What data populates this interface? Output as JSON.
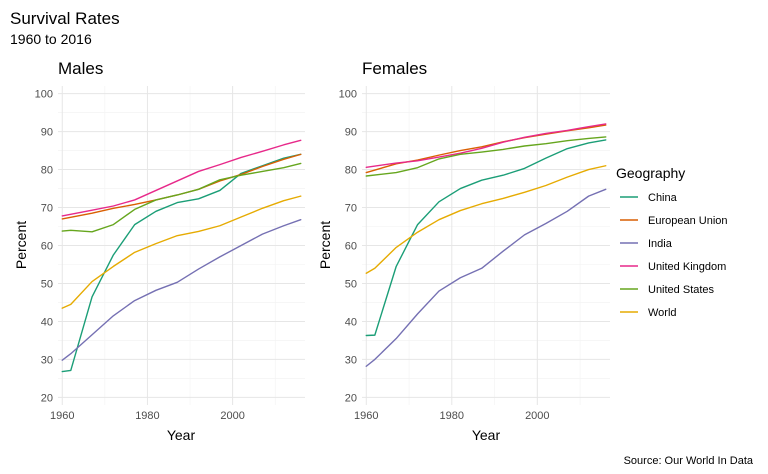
{
  "chart_data": {
    "type": "line",
    "title": "Survival Rates",
    "subtitle": "1960 to 2016",
    "caption": "Source: Our World In Data",
    "xlabel": "Year",
    "ylabel": "Percent",
    "xlim": [
      1959,
      2017
    ],
    "ylim": [
      18,
      102
    ],
    "x_ticks": [
      1960,
      1980,
      2000
    ],
    "y_ticks": [
      20,
      30,
      40,
      50,
      60,
      70,
      80,
      90,
      100
    ],
    "grid": true,
    "legend": {
      "title": "Geography",
      "position": "right",
      "items": [
        {
          "name": "China",
          "color": "#1b9e77"
        },
        {
          "name": "European Union",
          "color": "#d95f02"
        },
        {
          "name": "India",
          "color": "#7570b3"
        },
        {
          "name": "United Kingdom",
          "color": "#e7298a"
        },
        {
          "name": "United States",
          "color": "#66a61e"
        },
        {
          "name": "World",
          "color": "#e6ab02"
        }
      ]
    },
    "panels": [
      {
        "title": "Males",
        "series": [
          {
            "name": "China",
            "color": "#1b9e77",
            "points": [
              [
                1960,
                26.8
              ],
              [
                1962,
                27.1
              ],
              [
                1967,
                46.5
              ],
              [
                1972,
                57.5
              ],
              [
                1977,
                65.5
              ],
              [
                1982,
                69.0
              ],
              [
                1987,
                71.3
              ],
              [
                1992,
                72.3
              ],
              [
                1997,
                74.5
              ],
              [
                2002,
                79.0
              ],
              [
                2007,
                81.0
              ],
              [
                2012,
                83.0
              ],
              [
                2016,
                84.0
              ]
            ]
          },
          {
            "name": "European Union",
            "color": "#d95f02",
            "points": [
              [
                1960,
                67.0
              ],
              [
                1967,
                68.5
              ],
              [
                1972,
                69.8
              ],
              [
                1977,
                70.8
              ],
              [
                1982,
                72.0
              ],
              [
                1987,
                73.3
              ],
              [
                1992,
                74.8
              ],
              [
                1997,
                77.0
              ],
              [
                2002,
                78.7
              ],
              [
                2007,
                80.8
              ],
              [
                2012,
                82.7
              ],
              [
                2016,
                84.0
              ]
            ]
          },
          {
            "name": "India",
            "color": "#7570b3",
            "points": [
              [
                1960,
                29.8
              ],
              [
                1962,
                31.5
              ],
              [
                1967,
                36.5
              ],
              [
                1972,
                41.5
              ],
              [
                1977,
                45.5
              ],
              [
                1982,
                48.2
              ],
              [
                1987,
                50.3
              ],
              [
                1992,
                53.8
              ],
              [
                1997,
                57.0
              ],
              [
                2002,
                60.0
              ],
              [
                2007,
                63.0
              ],
              [
                2012,
                65.2
              ],
              [
                2016,
                66.8
              ]
            ]
          },
          {
            "name": "United Kingdom",
            "color": "#e7298a",
            "points": [
              [
                1960,
                67.8
              ],
              [
                1967,
                69.3
              ],
              [
                1972,
                70.4
              ],
              [
                1977,
                72.0
              ],
              [
                1982,
                74.5
              ],
              [
                1987,
                77.0
              ],
              [
                1992,
                79.5
              ],
              [
                1997,
                81.3
              ],
              [
                2002,
                83.2
              ],
              [
                2007,
                84.8
              ],
              [
                2012,
                86.5
              ],
              [
                2016,
                87.7
              ]
            ]
          },
          {
            "name": "United States",
            "color": "#66a61e",
            "points": [
              [
                1960,
                63.8
              ],
              [
                1962,
                64.0
              ],
              [
                1967,
                63.6
              ],
              [
                1972,
                65.5
              ],
              [
                1977,
                69.5
              ],
              [
                1982,
                72.0
              ],
              [
                1987,
                73.3
              ],
              [
                1992,
                74.8
              ],
              [
                1997,
                77.3
              ],
              [
                2002,
                78.5
              ],
              [
                2007,
                79.5
              ],
              [
                2012,
                80.5
              ],
              [
                2016,
                81.6
              ]
            ]
          },
          {
            "name": "World",
            "color": "#e6ab02",
            "points": [
              [
                1960,
                43.5
              ],
              [
                1962,
                44.5
              ],
              [
                1967,
                50.5
              ],
              [
                1972,
                54.5
              ],
              [
                1977,
                58.2
              ],
              [
                1982,
                60.5
              ],
              [
                1987,
                62.6
              ],
              [
                1992,
                63.7
              ],
              [
                1997,
                65.2
              ],
              [
                2002,
                67.5
              ],
              [
                2007,
                69.8
              ],
              [
                2012,
                71.8
              ],
              [
                2016,
                73.0
              ]
            ]
          }
        ]
      },
      {
        "title": "Females",
        "series": [
          {
            "name": "China",
            "color": "#1b9e77",
            "points": [
              [
                1960,
                36.3
              ],
              [
                1962,
                36.4
              ],
              [
                1967,
                54.5
              ],
              [
                1972,
                65.5
              ],
              [
                1977,
                71.5
              ],
              [
                1982,
                75.0
              ],
              [
                1987,
                77.2
              ],
              [
                1992,
                78.5
              ],
              [
                1997,
                80.3
              ],
              [
                2002,
                83.0
              ],
              [
                2007,
                85.5
              ],
              [
                2012,
                87.0
              ],
              [
                2016,
                87.8
              ]
            ]
          },
          {
            "name": "European Union",
            "color": "#d95f02",
            "points": [
              [
                1960,
                79.2
              ],
              [
                1967,
                81.5
              ],
              [
                1972,
                82.5
              ],
              [
                1977,
                83.8
              ],
              [
                1982,
                85.0
              ],
              [
                1987,
                86.0
              ],
              [
                1992,
                87.3
              ],
              [
                1997,
                88.4
              ],
              [
                2002,
                89.3
              ],
              [
                2007,
                90.2
              ],
              [
                2012,
                91.0
              ],
              [
                2016,
                91.7
              ]
            ]
          },
          {
            "name": "India",
            "color": "#7570b3",
            "points": [
              [
                1960,
                28.2
              ],
              [
                1962,
                30.0
              ],
              [
                1967,
                35.5
              ],
              [
                1972,
                42.0
              ],
              [
                1977,
                48.0
              ],
              [
                1982,
                51.5
              ],
              [
                1987,
                54.0
              ],
              [
                1992,
                58.5
              ],
              [
                1997,
                62.8
              ],
              [
                2002,
                65.8
              ],
              [
                2007,
                69.0
              ],
              [
                2012,
                73.0
              ],
              [
                2016,
                74.8
              ]
            ]
          },
          {
            "name": "United Kingdom",
            "color": "#e7298a",
            "points": [
              [
                1960,
                80.6
              ],
              [
                1967,
                81.7
              ],
              [
                1972,
                82.3
              ],
              [
                1977,
                83.3
              ],
              [
                1982,
                84.3
              ],
              [
                1987,
                85.6
              ],
              [
                1992,
                87.2
              ],
              [
                1997,
                88.5
              ],
              [
                2002,
                89.5
              ],
              [
                2007,
                90.3
              ],
              [
                2012,
                91.3
              ],
              [
                2016,
                92.0
              ]
            ]
          },
          {
            "name": "United States",
            "color": "#66a61e",
            "points": [
              [
                1960,
                78.3
              ],
              [
                1967,
                79.2
              ],
              [
                1972,
                80.5
              ],
              [
                1977,
                82.8
              ],
              [
                1982,
                84.0
              ],
              [
                1987,
                84.6
              ],
              [
                1992,
                85.3
              ],
              [
                1997,
                86.2
              ],
              [
                2002,
                86.8
              ],
              [
                2007,
                87.6
              ],
              [
                2012,
                88.2
              ],
              [
                2016,
                88.6
              ]
            ]
          },
          {
            "name": "World",
            "color": "#e6ab02",
            "points": [
              [
                1960,
                52.7
              ],
              [
                1962,
                54.0
              ],
              [
                1967,
                59.5
              ],
              [
                1972,
                63.5
              ],
              [
                1977,
                66.8
              ],
              [
                1982,
                69.2
              ],
              [
                1987,
                71.0
              ],
              [
                1992,
                72.4
              ],
              [
                1997,
                74.0
              ],
              [
                2002,
                75.8
              ],
              [
                2007,
                78.0
              ],
              [
                2012,
                80.0
              ],
              [
                2016,
                81.0
              ]
            ]
          }
        ]
      }
    ]
  }
}
